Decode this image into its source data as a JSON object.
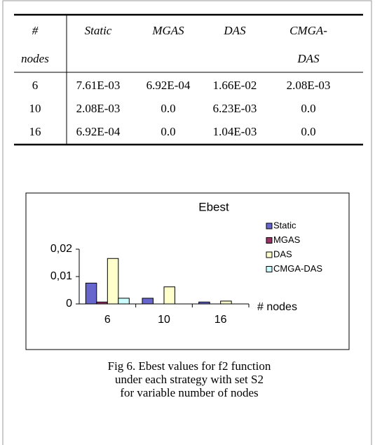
{
  "table": {
    "header": [
      [
        "#",
        "nodes"
      ],
      [
        "Static"
      ],
      [
        "MGAS"
      ],
      [
        "DAS"
      ],
      [
        "CMGA-",
        "DAS"
      ]
    ],
    "rows": [
      [
        "6",
        "7.61E-03",
        "6.92E-04",
        "1.66E-02",
        "2.08E-03"
      ],
      [
        "10",
        "2.08E-03",
        "0.0",
        "6.23E-03",
        "0.0"
      ],
      [
        "16",
        "6.92E-04",
        "0.0",
        "1.04E-03",
        "0.0"
      ]
    ]
  },
  "chart_data": {
    "type": "bar",
    "title": "Ebest",
    "x_label": "# nodes",
    "categories": [
      "6",
      "10",
      "16"
    ],
    "series": [
      {
        "name": "Static",
        "color": "#6666cc",
        "values": [
          0.00761,
          0.00208,
          0.000692
        ]
      },
      {
        "name": "MGAS",
        "color": "#993366",
        "values": [
          0.000692,
          0,
          0
        ]
      },
      {
        "name": "DAS",
        "color": "#ffffcc",
        "values": [
          0.0166,
          0.00623,
          0.00104
        ]
      },
      {
        "name": "CMGA-DAS",
        "color": "#ccffff",
        "values": [
          0.00208,
          0,
          0
        ]
      }
    ],
    "ylim": [
      0,
      0.02
    ],
    "yticks": [
      0,
      {
        "value": 0.01,
        "label": "0,01"
      },
      {
        "value": 0.02,
        "label": "0,02"
      }
    ],
    "legend": "right"
  },
  "caption": [
    "Fig 6. Ebest values for f2 function",
    "under each strategy with set S2",
    "for variable number of nodes"
  ]
}
